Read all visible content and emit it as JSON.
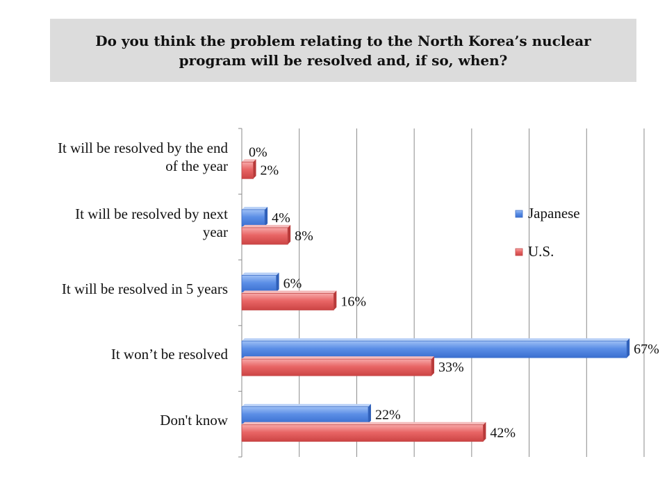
{
  "title": "Do you think the problem relating to the North Korea’s nuclear\nprogram will be resolved and, if so, when?",
  "chart_data": {
    "type": "bar",
    "orientation": "horizontal",
    "categories": [
      "It will be resolved by the end\nof the year",
      "It will be resolved by next\nyear",
      "It will be resolved in 5 years",
      "It won’t be resolved",
      "Don't know"
    ],
    "series": [
      {
        "name": "Japanese",
        "values": [
          0,
          4,
          6,
          67,
          22
        ],
        "labels": [
          "0%",
          "4%",
          "6%",
          "67%",
          "22%"
        ],
        "color": "#5b8ee6"
      },
      {
        "name": "U.S.",
        "values": [
          2,
          8,
          16,
          33,
          42
        ],
        "labels": [
          "2%",
          "8%",
          "16%",
          "33%",
          "42%"
        ],
        "color": "#e86565"
      }
    ],
    "xlim": [
      0,
      70
    ],
    "grid": true,
    "legend": "right"
  }
}
